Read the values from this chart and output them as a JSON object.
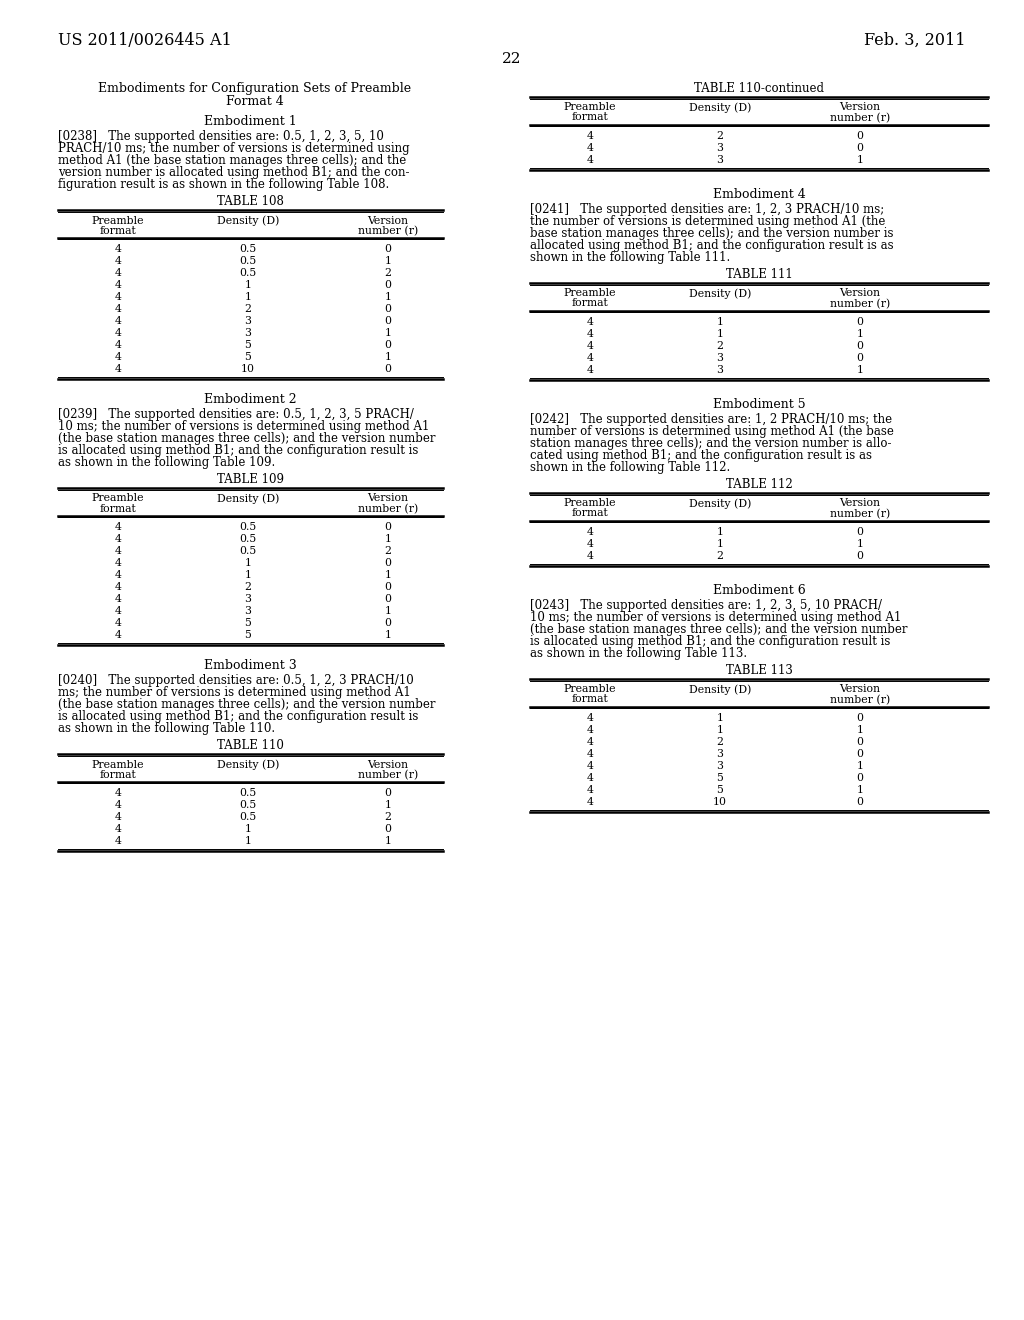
{
  "page_header_left": "US 2011/0026445 A1",
  "page_header_right": "Feb. 3, 2011",
  "page_number": "22",
  "section_title_line1": "Embodiments for Configuration Sets of Preamble",
  "section_title_line2": "Format 4",
  "left_column": {
    "embodiment1_title": "Embodiment 1",
    "embodiment1_para": [
      "[0238]   The supported densities are: 0.5, 1, 2, 3, 5, 10",
      "PRACH/10 ms; the number of versions is determined using",
      "method A1 (the base station manages three cells); and the",
      "version number is allocated using method B1; and the con-",
      "figuration result is as shown in the following Table 108."
    ],
    "table108_title": "TABLE 108",
    "table108_headers": [
      "Preamble",
      "format",
      "Density (D)",
      "Version",
      "number (r)"
    ],
    "table108_data": [
      [
        "4",
        "0.5",
        "0"
      ],
      [
        "4",
        "0.5",
        "1"
      ],
      [
        "4",
        "0.5",
        "2"
      ],
      [
        "4",
        "1",
        "0"
      ],
      [
        "4",
        "1",
        "1"
      ],
      [
        "4",
        "2",
        "0"
      ],
      [
        "4",
        "3",
        "0"
      ],
      [
        "4",
        "3",
        "1"
      ],
      [
        "4",
        "5",
        "0"
      ],
      [
        "4",
        "5",
        "1"
      ],
      [
        "4",
        "10",
        "0"
      ]
    ],
    "embodiment2_title": "Embodiment 2",
    "embodiment2_para": [
      "[0239]   The supported densities are: 0.5, 1, 2, 3, 5 PRACH/",
      "10 ms; the number of versions is determined using method A1",
      "(the base station manages three cells); and the version number",
      "is allocated using method B1; and the configuration result is",
      "as shown in the following Table 109."
    ],
    "table109_title": "TABLE 109",
    "table109_data": [
      [
        "4",
        "0.5",
        "0"
      ],
      [
        "4",
        "0.5",
        "1"
      ],
      [
        "4",
        "0.5",
        "2"
      ],
      [
        "4",
        "1",
        "0"
      ],
      [
        "4",
        "1",
        "1"
      ],
      [
        "4",
        "2",
        "0"
      ],
      [
        "4",
        "3",
        "0"
      ],
      [
        "4",
        "3",
        "1"
      ],
      [
        "4",
        "5",
        "0"
      ],
      [
        "4",
        "5",
        "1"
      ]
    ],
    "embodiment3_title": "Embodiment 3",
    "embodiment3_para": [
      "[0240]   The supported densities are: 0.5, 1, 2, 3 PRACH/10",
      "ms; the number of versions is determined using method A1",
      "(the base station manages three cells); and the version number",
      "is allocated using method B1; and the configuration result is",
      "as shown in the following Table 110."
    ],
    "table110_title": "TABLE 110",
    "table110_data": [
      [
        "4",
        "0.5",
        "0"
      ],
      [
        "4",
        "0.5",
        "1"
      ],
      [
        "4",
        "0.5",
        "2"
      ],
      [
        "4",
        "1",
        "0"
      ],
      [
        "4",
        "1",
        "1"
      ]
    ]
  },
  "right_column": {
    "table110cont_title": "TABLE 110-continued",
    "table110cont_data": [
      [
        "4",
        "2",
        "0"
      ],
      [
        "4",
        "3",
        "0"
      ],
      [
        "4",
        "3",
        "1"
      ]
    ],
    "embodiment4_title": "Embodiment 4",
    "embodiment4_para": [
      "[0241]   The supported densities are: 1, 2, 3 PRACH/10 ms;",
      "the number of versions is determined using method A1 (the",
      "base station manages three cells); and the version number is",
      "allocated using method B1; and the configuration result is as",
      "shown in the following Table 111."
    ],
    "table111_title": "TABLE 111",
    "table111_data": [
      [
        "4",
        "1",
        "0"
      ],
      [
        "4",
        "1",
        "1"
      ],
      [
        "4",
        "2",
        "0"
      ],
      [
        "4",
        "3",
        "0"
      ],
      [
        "4",
        "3",
        "1"
      ]
    ],
    "embodiment5_title": "Embodiment 5",
    "embodiment5_para": [
      "[0242]   The supported densities are: 1, 2 PRACH/10 ms; the",
      "number of versions is determined using method A1 (the base",
      "station manages three cells); and the version number is allo-",
      "cated using method B1; and the configuration result is as",
      "shown in the following Table 112."
    ],
    "table112_title": "TABLE 112",
    "table112_data": [
      [
        "4",
        "1",
        "0"
      ],
      [
        "4",
        "1",
        "1"
      ],
      [
        "4",
        "2",
        "0"
      ]
    ],
    "embodiment6_title": "Embodiment 6",
    "embodiment6_para": [
      "[0243]   The supported densities are: 1, 2, 3, 5, 10 PRACH/",
      "10 ms; the number of versions is determined using method A1",
      "(the base station manages three cells); and the version number",
      "is allocated using method B1; and the configuration result is",
      "as shown in the following Table 113."
    ],
    "table113_title": "TABLE 113",
    "table113_data": [
      [
        "4",
        "1",
        "0"
      ],
      [
        "4",
        "1",
        "1"
      ],
      [
        "4",
        "2",
        "0"
      ],
      [
        "4",
        "3",
        "0"
      ],
      [
        "4",
        "3",
        "1"
      ],
      [
        "4",
        "5",
        "0"
      ],
      [
        "4",
        "5",
        "1"
      ],
      [
        "4",
        "10",
        "0"
      ]
    ]
  }
}
